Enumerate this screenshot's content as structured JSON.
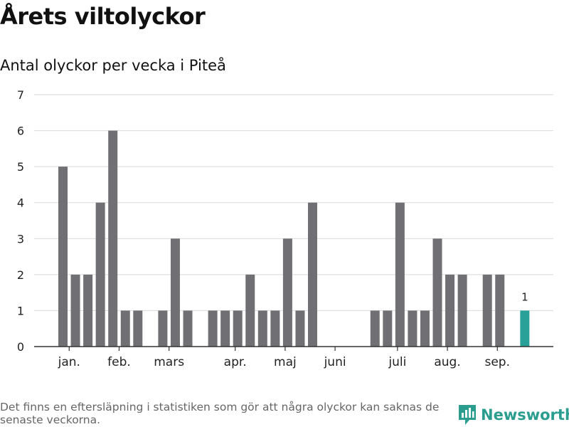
{
  "header": {
    "title": "Årets viltolyckor",
    "subtitle": "Antal olyckor per vecka i Piteå"
  },
  "footer": {
    "note": "Det finns en eftersläpning i statistiken som gör att några olyckor kan saknas de senaste veckorna.",
    "brand": "Newsworthy"
  },
  "colors": {
    "bar": "#707074",
    "highlight": "#2aa198",
    "grid": "#d9d9d9",
    "axis": "#333333",
    "brand": "#2a9d8f"
  },
  "chart_data": {
    "type": "bar",
    "title": "",
    "xlabel": "",
    "ylabel": "",
    "ylim": [
      0,
      7
    ],
    "yticks": [
      0,
      1,
      2,
      3,
      4,
      5,
      6,
      7
    ],
    "x": [
      1,
      2,
      3,
      4,
      5,
      6,
      7,
      8,
      9,
      10,
      11,
      12,
      13,
      14,
      15,
      16,
      17,
      18,
      19,
      20,
      21,
      22,
      23,
      24,
      25,
      26,
      27,
      28,
      29,
      30,
      31,
      32,
      33,
      34,
      35,
      36,
      37,
      38
    ],
    "values": [
      5,
      2,
      2,
      4,
      6,
      1,
      1,
      0,
      1,
      3,
      1,
      0,
      1,
      1,
      1,
      2,
      1,
      1,
      3,
      1,
      4,
      0,
      0,
      0,
      0,
      1,
      1,
      4,
      1,
      1,
      3,
      2,
      2,
      0,
      2,
      2,
      0,
      1
    ],
    "highlight_index": 37,
    "data_labels": [
      {
        "index": 37,
        "text": "1"
      }
    ],
    "month_labels": [
      {
        "label": "jan.",
        "x": 1.5
      },
      {
        "label": "feb.",
        "x": 5.5
      },
      {
        "label": "mars",
        "x": 9.5
      },
      {
        "label": "apr.",
        "x": 14.8
      },
      {
        "label": "maj",
        "x": 18.8
      },
      {
        "label": "juni",
        "x": 22.8
      },
      {
        "label": "juli",
        "x": 27.8
      },
      {
        "label": "aug.",
        "x": 31.8
      },
      {
        "label": "sep.",
        "x": 35.8
      }
    ],
    "grid": true,
    "legend": "none"
  }
}
